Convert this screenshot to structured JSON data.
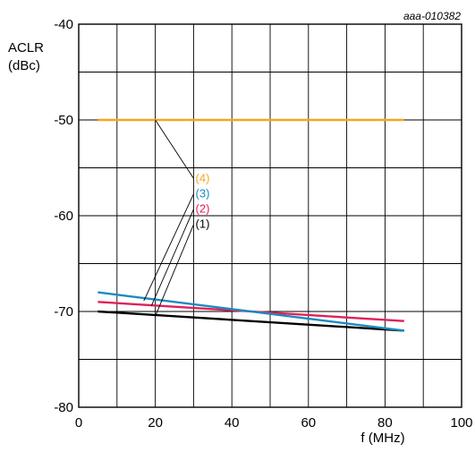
{
  "figure_id": "aaa-010382",
  "chart_data": {
    "type": "line",
    "xlabel": "f (MHz)",
    "ylabel": [
      "ACLR",
      "(dBc)"
    ],
    "xlim": [
      0,
      100
    ],
    "ylim": [
      -80,
      -40
    ],
    "x_ticks": [
      0,
      20,
      40,
      60,
      80,
      100
    ],
    "y_ticks": [
      -80,
      -70,
      -60,
      -50,
      -40
    ],
    "x_tick_labels": [
      "0",
      "20",
      "40",
      "60",
      "80",
      "100"
    ],
    "y_tick_labels": [
      "-80",
      "-70",
      "-60",
      "-50",
      "-40"
    ],
    "grid": true,
    "series": [
      {
        "name": "(1)",
        "color": "#000000",
        "x": [
          5,
          85
        ],
        "y": [
          -70,
          -72
        ]
      },
      {
        "name": "(2)",
        "color": "#e0205a",
        "x": [
          5,
          85
        ],
        "y": [
          -69,
          -71
        ]
      },
      {
        "name": "(3)",
        "color": "#1a8ac0",
        "x": [
          5,
          85
        ],
        "y": [
          -68,
          -72
        ]
      },
      {
        "name": "(4)",
        "color": "#f5a623",
        "x": [
          5,
          85
        ],
        "y": [
          -50,
          -50
        ]
      }
    ],
    "annotations": [
      {
        "label": "(4)",
        "series": 3,
        "from": [
          20,
          -50
        ]
      },
      {
        "label": "(3)",
        "series": 2,
        "from": [
          17,
          -68.9
        ]
      },
      {
        "label": "(2)",
        "series": 1,
        "from": [
          19,
          -69.4
        ]
      },
      {
        "label": "(1)",
        "series": 0,
        "from": [
          20,
          -70.5
        ]
      }
    ]
  }
}
